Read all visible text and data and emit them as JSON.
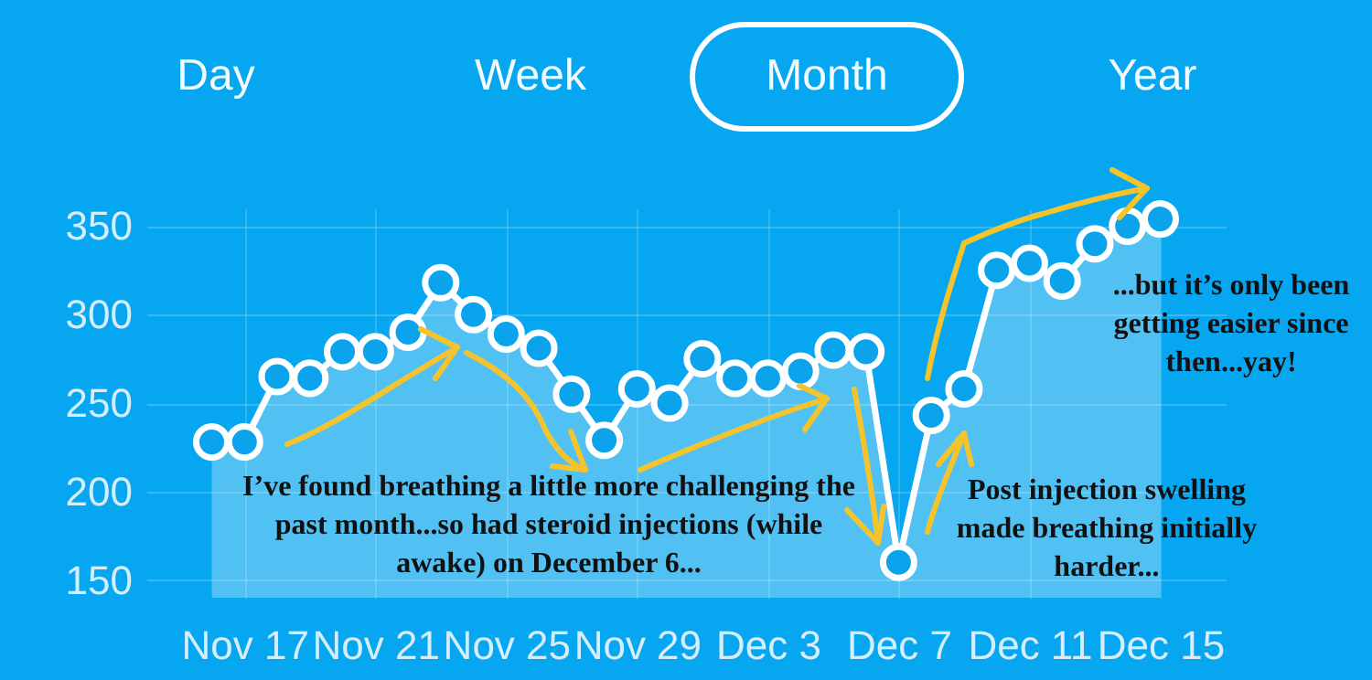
{
  "chart_data": {
    "type": "area",
    "color": "#ffffff",
    "marker": "circle",
    "grid": true,
    "x": [
      "--11-16",
      "--11-17",
      "--11-18",
      "--11-19",
      "--11-20",
      "--11-21",
      "--11-22",
      "--11-23",
      "--11-24",
      "--11-25",
      "--11-26",
      "--11-27",
      "--11-28",
      "--11-29",
      "--11-30",
      "--12-01",
      "--12-02",
      "--12-03",
      "--12-04",
      "--12-05",
      "--12-06",
      "--12-07",
      "--12-08",
      "--12-09",
      "--12-10",
      "--12-11",
      "--12-12",
      "--12-13",
      "--12-14",
      "--12-15"
    ],
    "values": [
      228,
      228,
      265,
      264,
      279,
      279,
      290,
      318,
      300,
      289,
      281,
      255,
      229,
      258,
      250,
      275,
      264,
      264,
      268,
      280,
      279,
      160,
      243,
      258,
      325,
      329,
      319,
      340,
      350,
      354
    ],
    "xlim": [
      "--11-14",
      "--12-17"
    ],
    "xticks": [
      {
        "value": "--11-17",
        "label": "Nov 17"
      },
      {
        "value": "--11-21",
        "label": "Nov 21"
      },
      {
        "value": "--11-25",
        "label": "Nov 25"
      },
      {
        "value": "--11-29",
        "label": "Nov 29"
      },
      {
        "value": "--12-03",
        "label": "Dec 3"
      },
      {
        "value": "--12-07",
        "label": "Dec 7"
      },
      {
        "value": "--12-11",
        "label": "Dec 11"
      },
      {
        "value": "--12-15",
        "label": "Dec 15"
      }
    ],
    "ylim": [
      140,
      360
    ],
    "yticks": [
      150,
      200,
      250,
      300,
      350
    ],
    "annotations": [
      "Day",
      "Week",
      "Month",
      "Year",
      "I’ve found breathing a little more challenging the past month...so had steroid injections (while awake) on December 6...",
      "Post injection swelling made breathing initially harder...",
      "...but it’s only been getting easier since then...yay!"
    ]
  }
}
